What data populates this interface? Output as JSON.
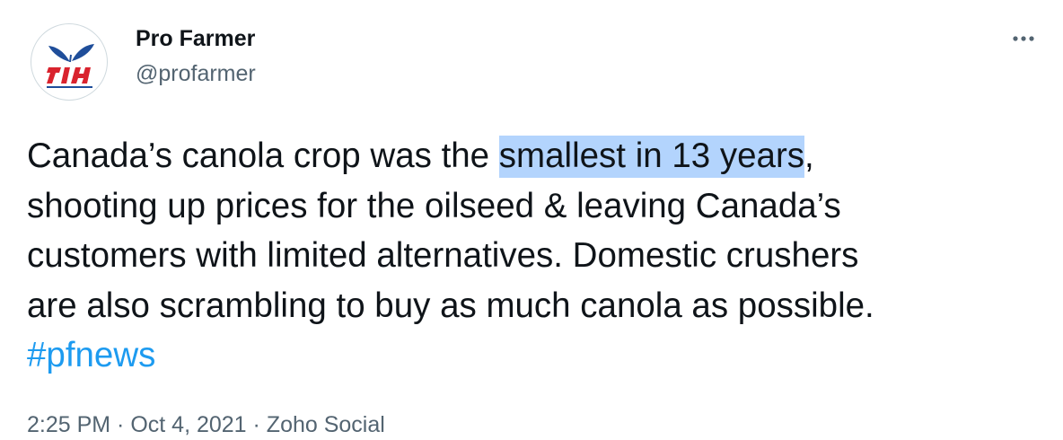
{
  "author": {
    "display_name": "Pro Farmer",
    "handle": "@profarmer"
  },
  "tweet": {
    "lines": [
      {
        "before": "Canada’s canola crop was the ",
        "highlight": "smallest in 13 years",
        "after": ","
      },
      {
        "text": "shooting up prices for the oilseed & leaving Canada’s"
      },
      {
        "text": "customers with limited alternatives. Domestic crushers"
      },
      {
        "text": "are also scrambling to buy as much canola as possible."
      }
    ],
    "hashtag": "#pfnews"
  },
  "meta": {
    "time": "2:25 PM",
    "separator": " · ",
    "date": "Oct 4, 2021",
    "source": "Zoho Social"
  },
  "colors": {
    "text": "#0f1419",
    "secondary": "#536471",
    "link": "#1d9bf0",
    "selection": "#b3d4fd",
    "logo_red": "#d9232e",
    "logo_blue": "#1f4e9a"
  },
  "icons": {
    "avatar": "pro-farmer-logo",
    "more": "more-options-icon"
  }
}
